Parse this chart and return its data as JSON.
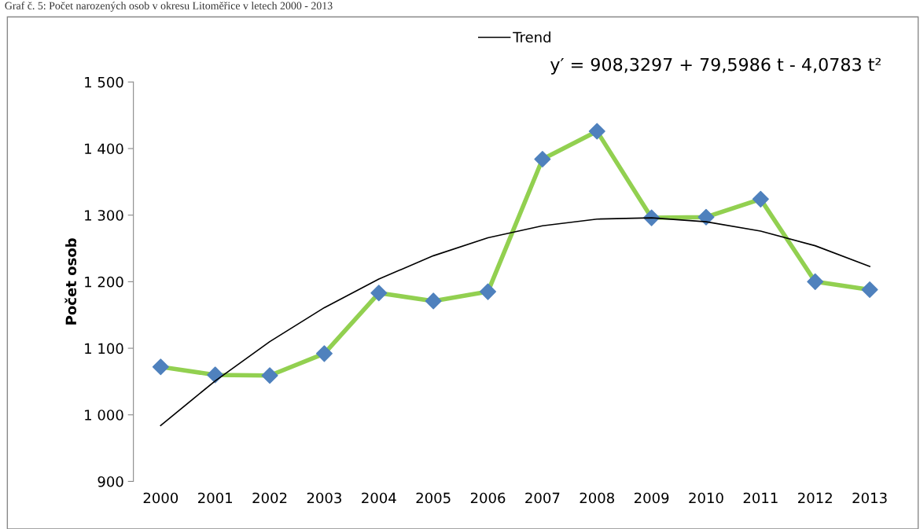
{
  "chart_data": {
    "type": "line",
    "title": "Graf č. 5: Počet narozených osob v okresu Litoměřice v letech 2000 - 2013",
    "ylabel": "Počet osob",
    "categories": [
      "2000",
      "2001",
      "2002",
      "2003",
      "2004",
      "2005",
      "2006",
      "2007",
      "2008",
      "2009",
      "2010",
      "2011",
      "2012",
      "2013"
    ],
    "series": [
      {
        "color": "#92d050",
        "marker": "diamond",
        "colors": [
          "#4f81bd",
          "#4f81bd",
          "#4f81bd",
          "#4f81bd",
          "#4f81bd",
          "#4f81bd",
          "#4f81bd",
          "#4f81bd",
          "#4f81bd",
          "#4f81bd",
          "#4f81bd",
          "#4f81bd",
          "#4f81bd",
          "#4f81bd"
        ],
        "values": [
          1072,
          1060,
          1059,
          1092,
          1183,
          1171,
          1185,
          1384,
          1426,
          1296,
          1297,
          1324,
          1200,
          1188
        ]
      },
      {
        "name": "Trend",
        "color": "#000000",
        "marker": "none",
        "values": [
          984,
          1051,
          1110,
          1161,
          1204,
          1239,
          1266,
          1284,
          1294,
          1296,
          1290,
          1276,
          1254,
          1223
        ]
      }
    ],
    "ylim": [
      900,
      1500
    ],
    "yticks": [
      {
        "value": 900,
        "label": "900"
      },
      {
        "value": 1000,
        "label": "1 000"
      },
      {
        "value": 1100,
        "label": "1 100"
      },
      {
        "value": 1200,
        "label": "1 200"
      },
      {
        "value": 1300,
        "label": "1 300"
      },
      {
        "value": 1400,
        "label": "1 400"
      },
      {
        "value": 1500,
        "label": "1 500"
      }
    ],
    "annotations": [
      "y′ = 908,3297 + 79,5986 t - 4,0783 t²"
    ],
    "grid": false,
    "legend": "top"
  }
}
